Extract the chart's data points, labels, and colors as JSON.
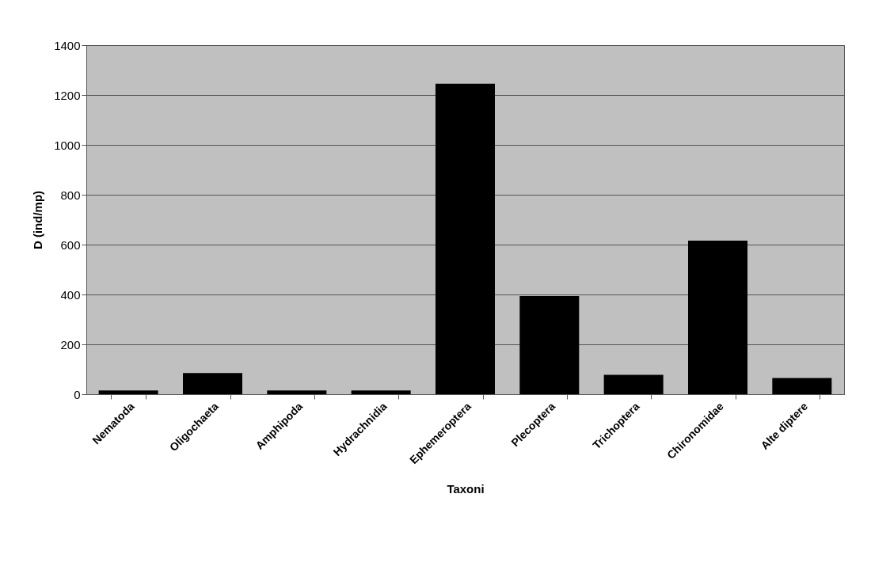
{
  "chart_data": {
    "type": "bar",
    "xlabel": "Taxoni",
    "ylabel": "D (ind/mp)",
    "categories": [
      "Nematoda",
      "Oligochaeta",
      "Amphipoda",
      "Hydrachnidia",
      "Ephemeroptera",
      "Plecoptera",
      "Trichoptera",
      "Chironomidae",
      "Alte diptere"
    ],
    "values": [
      15,
      85,
      15,
      15,
      1245,
      394,
      78,
      616,
      65
    ],
    "color": "#000000",
    "ylim": [
      0,
      1400
    ],
    "yticks": [
      0,
      200,
      400,
      600,
      800,
      1000,
      1200,
      1400
    ],
    "grid": "y"
  }
}
